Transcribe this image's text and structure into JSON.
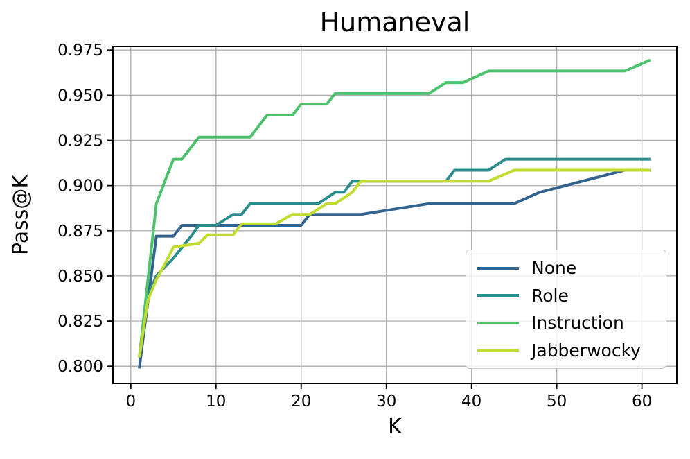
{
  "figure": {
    "title": "Humaneval",
    "xlabel": "K",
    "ylabel": "Pass@K"
  },
  "chart_data": {
    "type": "line",
    "title": "Humaneval",
    "xlabel": "K",
    "ylabel": "Pass@K",
    "grid": true,
    "legend_position": "lower right",
    "xlim": [
      -2.1,
      64.1
    ],
    "ylim": [
      0.7905,
      0.977
    ],
    "x_ticks": [
      0,
      10,
      20,
      30,
      40,
      50,
      60
    ],
    "y_ticks": [
      0.8,
      0.825,
      0.85,
      0.875,
      0.9,
      0.925,
      0.95,
      0.975
    ],
    "y_tick_labels": [
      "0.800",
      "0.825",
      "0.850",
      "0.875",
      "0.900",
      "0.925",
      "0.950",
      "0.975"
    ],
    "grid_color": "#b0b0b0",
    "spine_color": "#000000",
    "series": [
      {
        "name": "None",
        "color": "#33638f",
        "points": [
          [
            1,
            0.7988
          ],
          [
            3,
            0.872
          ],
          [
            5,
            0.872
          ],
          [
            6,
            0.878
          ],
          [
            20,
            0.878
          ],
          [
            21,
            0.884
          ],
          [
            27,
            0.884
          ],
          [
            35,
            0.89
          ],
          [
            45,
            0.89
          ],
          [
            48,
            0.8963
          ],
          [
            58,
            0.9085
          ],
          [
            61,
            0.9085
          ]
        ]
      },
      {
        "name": "Role",
        "color": "#2b8c8c",
        "points": [
          [
            1,
            0.8049
          ],
          [
            2,
            0.839
          ],
          [
            3,
            0.85
          ],
          [
            5,
            0.8598
          ],
          [
            7,
            0.8715
          ],
          [
            8,
            0.878
          ],
          [
            10,
            0.878
          ],
          [
            12,
            0.884
          ],
          [
            13,
            0.884
          ],
          [
            14,
            0.89
          ],
          [
            22,
            0.89
          ],
          [
            24,
            0.8963
          ],
          [
            25,
            0.8963
          ],
          [
            26,
            0.9024
          ],
          [
            37,
            0.9024
          ],
          [
            38,
            0.9085
          ],
          [
            42,
            0.9085
          ],
          [
            44,
            0.9146
          ],
          [
            61,
            0.9146
          ]
        ]
      },
      {
        "name": "Instruction",
        "color": "#4cc26d",
        "points": [
          [
            1,
            0.8049
          ],
          [
            3,
            0.89
          ],
          [
            4,
            0.9024
          ],
          [
            5,
            0.9146
          ],
          [
            6,
            0.9146
          ],
          [
            7,
            0.9207
          ],
          [
            8,
            0.9268
          ],
          [
            14,
            0.9268
          ],
          [
            16,
            0.939
          ],
          [
            19,
            0.939
          ],
          [
            20,
            0.9451
          ],
          [
            23,
            0.9451
          ],
          [
            24,
            0.951
          ],
          [
            35,
            0.951
          ],
          [
            37,
            0.957
          ],
          [
            39,
            0.957
          ],
          [
            42,
            0.9634
          ],
          [
            58,
            0.9634
          ],
          [
            61,
            0.9695
          ]
        ]
      },
      {
        "name": "Jabberwocky",
        "color": "#c2db2f",
        "points": [
          [
            1,
            0.8049
          ],
          [
            2,
            0.8365
          ],
          [
            3,
            0.848
          ],
          [
            4,
            0.8565
          ],
          [
            5,
            0.866
          ],
          [
            8,
            0.868
          ],
          [
            9,
            0.8727
          ],
          [
            12,
            0.8727
          ],
          [
            13,
            0.8788
          ],
          [
            17,
            0.8788
          ],
          [
            19,
            0.884
          ],
          [
            21,
            0.884
          ],
          [
            23,
            0.89
          ],
          [
            24,
            0.89
          ],
          [
            26,
            0.8963
          ],
          [
            27,
            0.9024
          ],
          [
            42,
            0.9024
          ],
          [
            45,
            0.9085
          ],
          [
            61,
            0.9085
          ]
        ]
      }
    ]
  }
}
